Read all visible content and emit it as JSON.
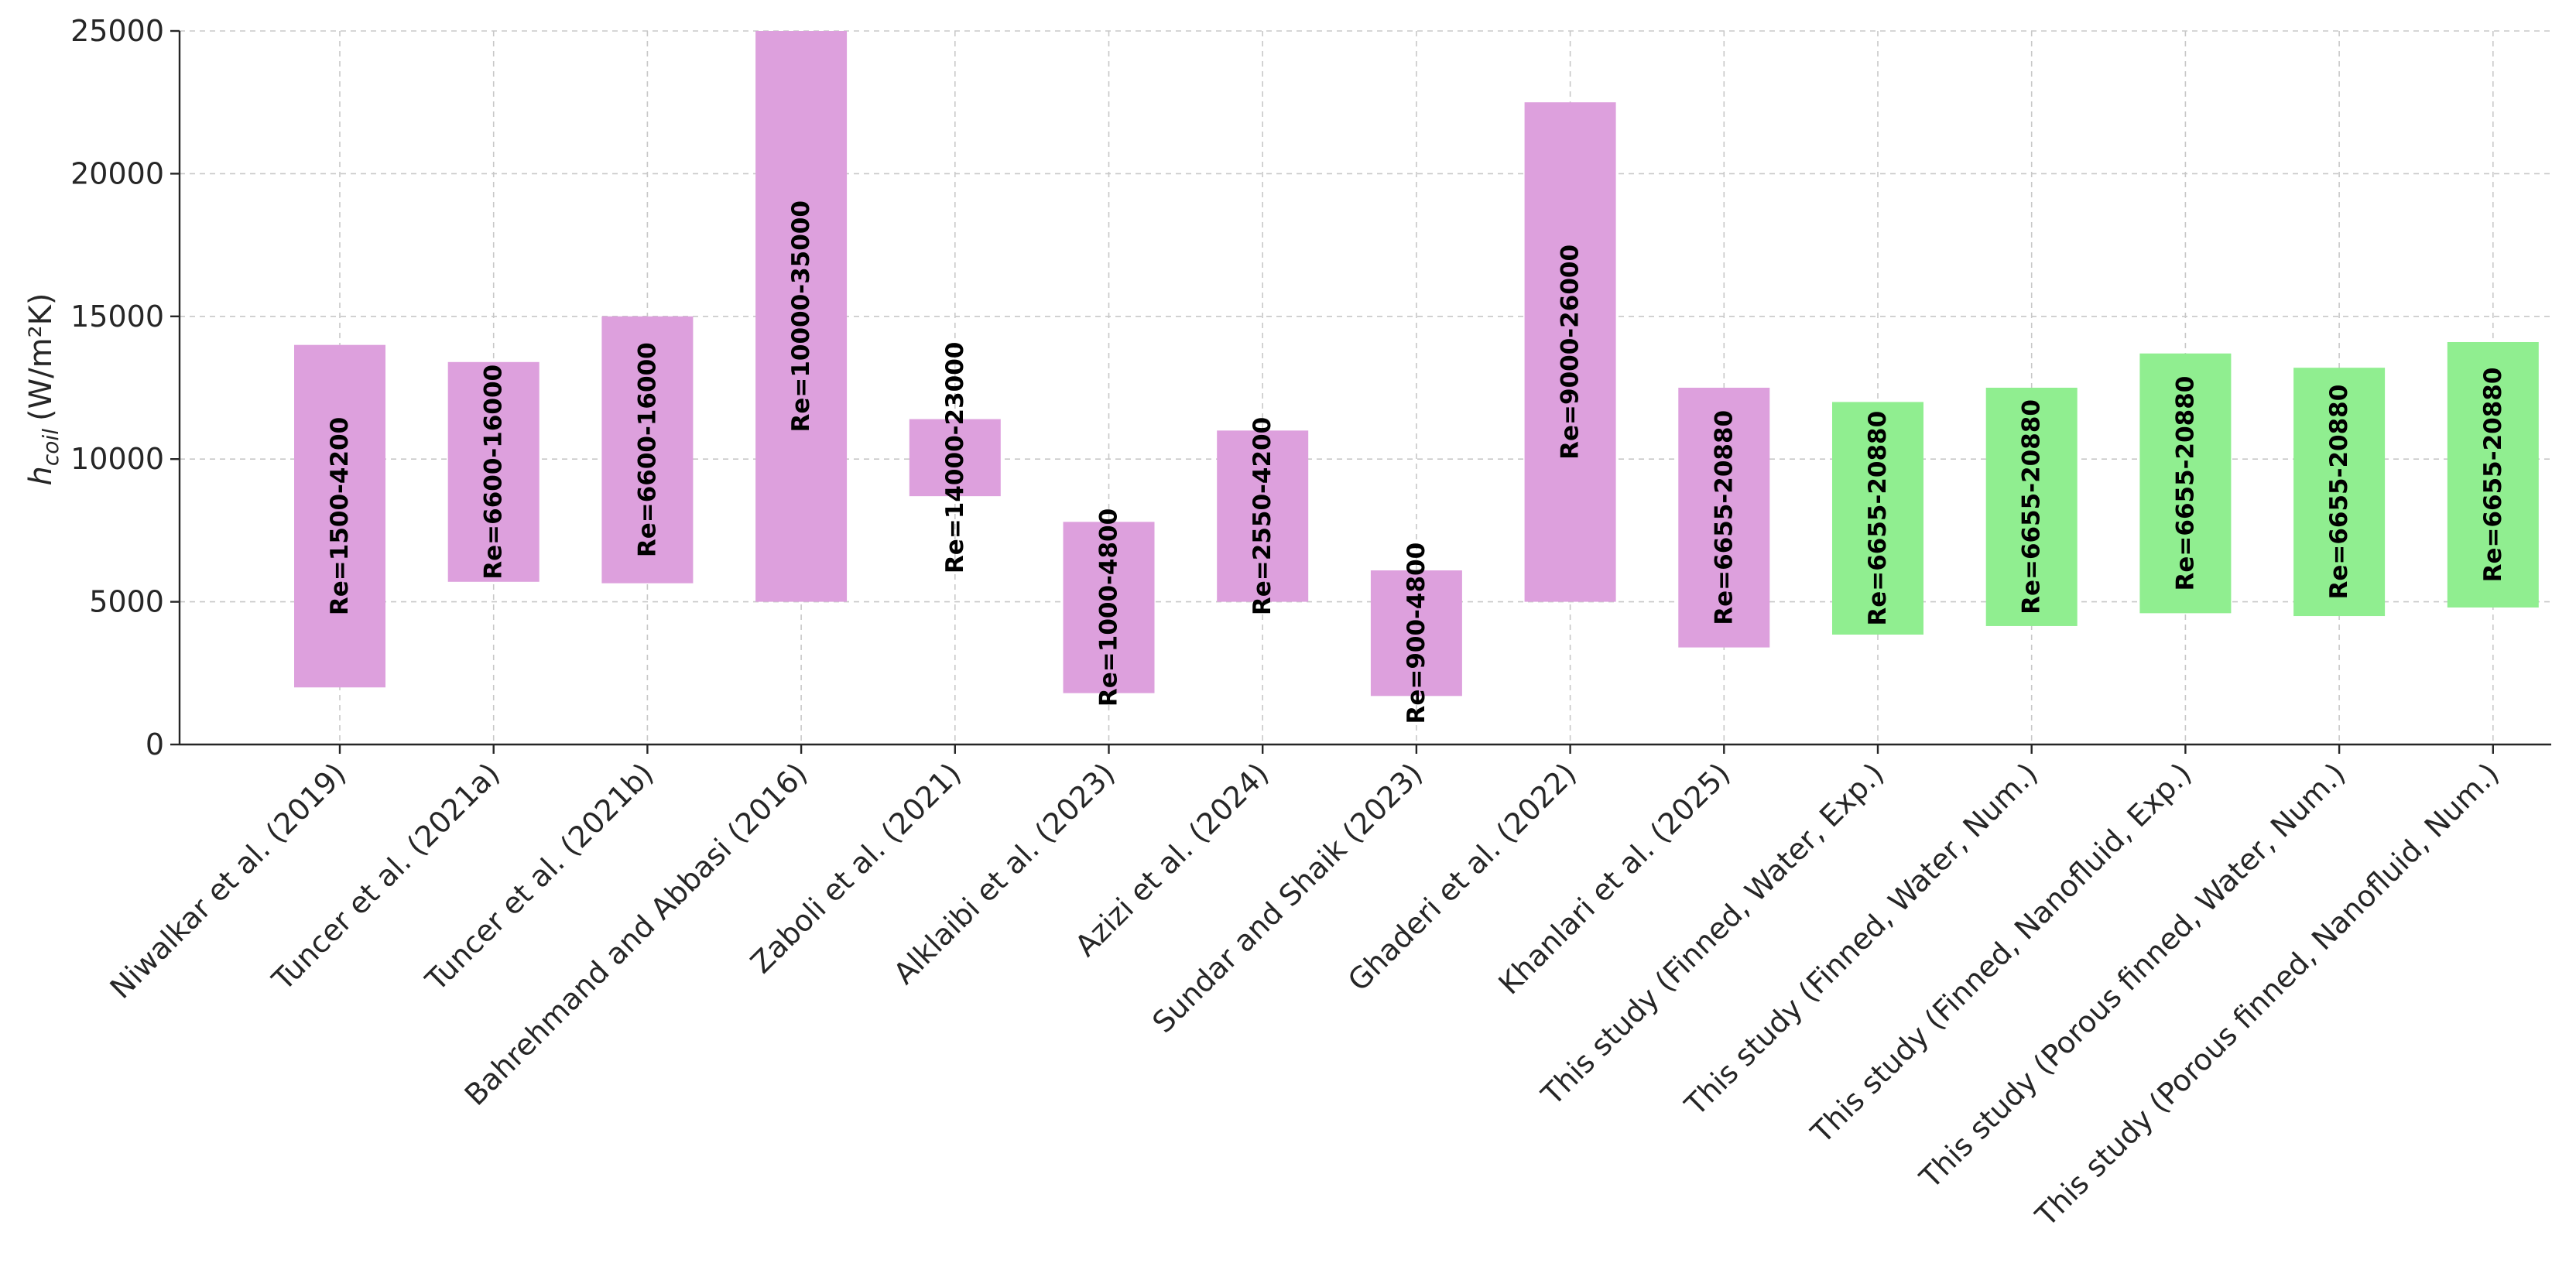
{
  "chart_data": {
    "type": "bar",
    "subtype": "floating-range",
    "title": "",
    "xlabel": "",
    "ylabel": "(W/m²K)",
    "ylabel_symbol": "h",
    "ylabel_subscript": "coil",
    "ylim": [
      0,
      25000
    ],
    "yticks": [
      0,
      5000,
      10000,
      15000,
      20000,
      25000
    ],
    "grid": true,
    "colors": {
      "literature": "#dda0dd",
      "this_study": "#90ee90"
    },
    "categories": [
      "Niwalkar et al. (2019)",
      "Tuncer et al. (2021a)",
      "Tuncer et al. (2021b)",
      "Bahrehmand and Abbasi (2016)",
      "Zaboli et al. (2021)",
      "Alklaibi et al. (2023)",
      "Azizi et al. (2024)",
      "Sundar and Shaik (2023)",
      "Ghaderi et al. (2022)",
      "Khanlari et al. (2025)",
      "This study (Finned, Water, Exp.)",
      "This study (Finned, Water, Num.)",
      "This study (Finned, Nanofluid, Exp.)",
      "This study (Porous finned, Water, Num.)",
      "This study (Porous finned, Nanofluid, Num.)"
    ],
    "low": [
      2000,
      5700,
      5650,
      5000,
      8700,
      1800,
      5000,
      1700,
      5000,
      3400,
      3850,
      4150,
      4600,
      4500,
      4800
    ],
    "high": [
      14000,
      13400,
      15000,
      25000,
      11400,
      7800,
      11000,
      6100,
      22500,
      12500,
      12000,
      12500,
      13700,
      13200,
      14100
    ],
    "series_group": [
      "literature",
      "literature",
      "literature",
      "literature",
      "literature",
      "literature",
      "literature",
      "literature",
      "literature",
      "literature",
      "this_study",
      "this_study",
      "this_study",
      "this_study",
      "this_study"
    ],
    "labels": [
      "Re=1500-4200",
      "Re=6600-16000",
      "Re=6600-16000",
      "Re=10000-35000",
      "Re=14000-23000",
      "Re=1000-4800",
      "Re=2550-4200",
      "Re=900-4800",
      "Re=9000-26000",
      "Re=6655-20880",
      "Re=6655-20880",
      "Re=6655-20880",
      "Re=6655-20880",
      "Re=6655-20880",
      "Re=6655-20880"
    ]
  }
}
